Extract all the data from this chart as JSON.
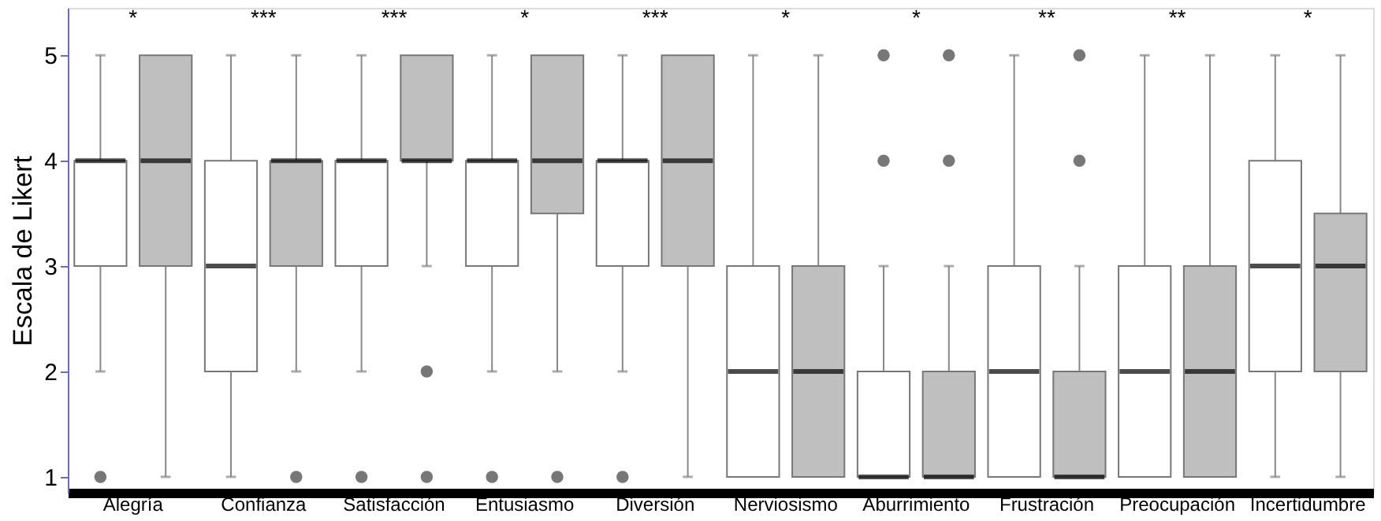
{
  "chart_data": {
    "type": "box",
    "ylabel": "Escala de Likert",
    "categories": [
      "Alegría",
      "Confianza",
      "Satisfacción",
      "Entusiasmo",
      "Diversión",
      "Nerviosismo",
      "Aburrimiento",
      "Frustración",
      "Preocupación",
      "Incertidumbre"
    ],
    "ylim": [
      0.85,
      5.45
    ],
    "yticks": [
      1,
      2,
      3,
      4,
      5
    ],
    "grid": false,
    "legend": false,
    "series": [
      {
        "color": "#ffffff",
        "boxes": [
          {
            "low": 2,
            "q1": 3,
            "median": 4,
            "q3": 4,
            "high": 5,
            "outliers": [
              1
            ]
          },
          {
            "low": 1,
            "q1": 2,
            "median": 3,
            "q3": 4,
            "high": 5
          },
          {
            "low": 2,
            "q1": 3,
            "median": 4,
            "q3": 4,
            "high": 5,
            "outliers": [
              1
            ]
          },
          {
            "low": 2,
            "q1": 3,
            "median": 4,
            "q3": 4,
            "high": 5,
            "outliers": [
              1
            ]
          },
          {
            "low": 2,
            "q1": 3,
            "median": 4,
            "q3": 4,
            "high": 5,
            "outliers": [
              1
            ]
          },
          {
            "low": 1,
            "q1": 1,
            "median": 2,
            "q3": 3,
            "high": 5
          },
          {
            "low": 1,
            "q1": 1,
            "median": 1,
            "q3": 2,
            "high": 3,
            "outliers": [
              4,
              5
            ]
          },
          {
            "low": 1,
            "q1": 1,
            "median": 2,
            "q3": 3,
            "high": 5
          },
          {
            "low": 1,
            "q1": 1,
            "median": 2,
            "q3": 3,
            "high": 5
          },
          {
            "low": 1,
            "q1": 2,
            "median": 3,
            "q3": 4,
            "high": 5
          }
        ]
      },
      {
        "color": "#bfbfbf",
        "boxes": [
          {
            "low": 1,
            "q1": 3,
            "median": 4,
            "q3": 5,
            "high": 5
          },
          {
            "low": 2,
            "q1": 3,
            "median": 4,
            "q3": 4,
            "high": 5,
            "outliers": [
              1
            ]
          },
          {
            "low": 3,
            "q1": 4,
            "median": 4,
            "q3": 5,
            "high": 5,
            "outliers": [
              2,
              1
            ]
          },
          {
            "low": 2,
            "q1": 3.5,
            "median": 4,
            "q3": 5,
            "high": 5,
            "outliers": [
              1
            ]
          },
          {
            "low": 1,
            "q1": 3,
            "median": 4,
            "q3": 5,
            "high": 5
          },
          {
            "low": 1,
            "q1": 1,
            "median": 2,
            "q3": 3,
            "high": 5
          },
          {
            "low": 1,
            "q1": 1,
            "median": 1,
            "q3": 2,
            "high": 3,
            "outliers": [
              4,
              5
            ]
          },
          {
            "low": 1,
            "q1": 1,
            "median": 1,
            "q3": 2,
            "high": 3,
            "outliers": [
              4,
              5
            ]
          },
          {
            "low": 1,
            "q1": 1,
            "median": 2,
            "q3": 3,
            "high": 5
          },
          {
            "low": 1,
            "q1": 2,
            "median": 3,
            "q3": 3.5,
            "high": 5
          }
        ]
      }
    ],
    "annotations": [
      "*",
      "***",
      "***",
      "*",
      "***",
      "*",
      "*",
      "**",
      "**",
      "*"
    ]
  }
}
